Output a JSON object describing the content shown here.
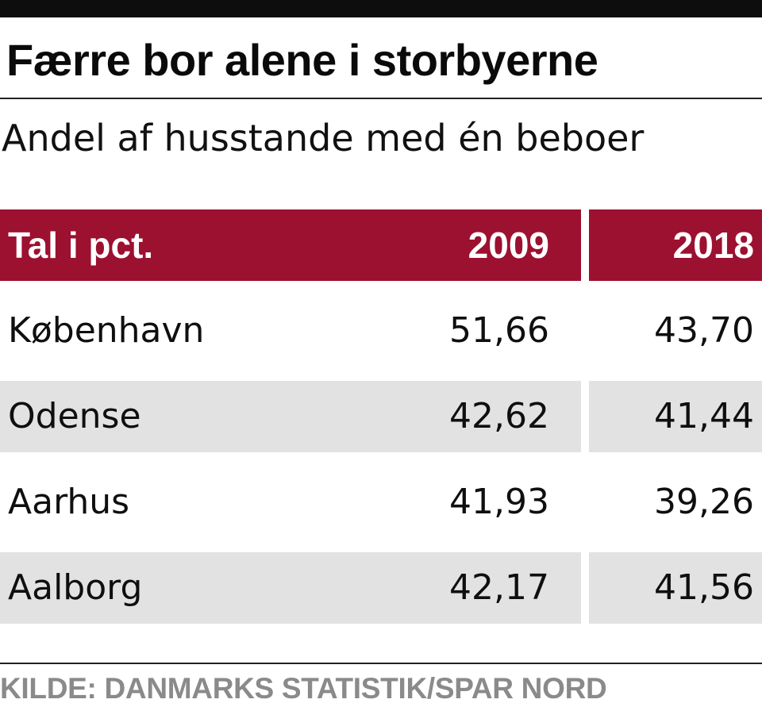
{
  "title": "Færre bor alene i storbyerne",
  "subtitle": "Andel af husstande med én beboer",
  "source": "KILDE: DANMARKS STATISTIK/SPAR NORD",
  "colors": {
    "header_background": "#9c1030",
    "header_text": "#ffffff",
    "shaded_row": "#e3e2e3",
    "source_text": "#8a8a8a"
  },
  "chart_data": {
    "type": "table",
    "title": "Færre bor alene i storbyerne",
    "subtitle": "Andel af husstande med én beboer",
    "columns": [
      "Tal i pct.",
      "2009",
      "2018"
    ],
    "rows": [
      {
        "city": "København",
        "values": [
          "51,66",
          "43,70"
        ]
      },
      {
        "city": "Odense",
        "values": [
          "42,62",
          "41,44"
        ]
      },
      {
        "city": "Aarhus",
        "values": [
          "41,93",
          "39,26"
        ]
      },
      {
        "city": "Aalborg",
        "values": [
          "42,17",
          "41,56"
        ]
      }
    ],
    "source": "KILDE: DANMARKS STATISTIK/SPAR NORD"
  }
}
